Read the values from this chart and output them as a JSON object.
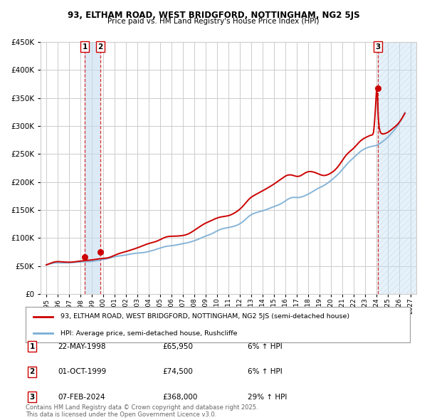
{
  "title_line1": "93, ELTHAM ROAD, WEST BRIDGFORD, NOTTINGHAM, NG2 5JS",
  "title_line2": "Price paid vs. HM Land Registry's House Price Index (HPI)",
  "legend_property": "93, ELTHAM ROAD, WEST BRIDGFORD, NOTTINGHAM, NG2 5JS (semi-detached house)",
  "legend_hpi": "HPI: Average price, semi-detached house, Rushcliffe",
  "footer": "Contains HM Land Registry data © Crown copyright and database right 2025.\nThis data is licensed under the Open Government Licence v3.0.",
  "transactions": [
    {
      "num": 1,
      "date": "22-MAY-1998",
      "price": 65950,
      "pct": "6%",
      "dir": "↑",
      "year": 1998.38
    },
    {
      "num": 2,
      "date": "01-OCT-1999",
      "price": 74500,
      "pct": "6%",
      "dir": "↑",
      "year": 1999.75
    },
    {
      "num": 3,
      "date": "07-FEB-2024",
      "price": 368000,
      "pct": "29%",
      "dir": "↑",
      "year": 2024.1
    }
  ],
  "property_color": "#cc0000",
  "hpi_color": "#7aadd4",
  "vline_color": "#cc0000",
  "shade_color": "#c5ddf0",
  "grid_color": "#cccccc",
  "bg_color": "#ffffff",
  "ylim": [
    0,
    450000
  ],
  "yticks": [
    0,
    50000,
    100000,
    150000,
    200000,
    250000,
    300000,
    350000,
    400000,
    450000
  ],
  "xlim_start": 1994.5,
  "xlim_end": 2027.5,
  "xticks": [
    1995,
    1996,
    1997,
    1998,
    1999,
    2000,
    2001,
    2002,
    2003,
    2004,
    2005,
    2006,
    2007,
    2008,
    2009,
    2010,
    2011,
    2012,
    2013,
    2014,
    2015,
    2016,
    2017,
    2018,
    2019,
    2020,
    2021,
    2022,
    2023,
    2024,
    2025,
    2026,
    2027
  ]
}
